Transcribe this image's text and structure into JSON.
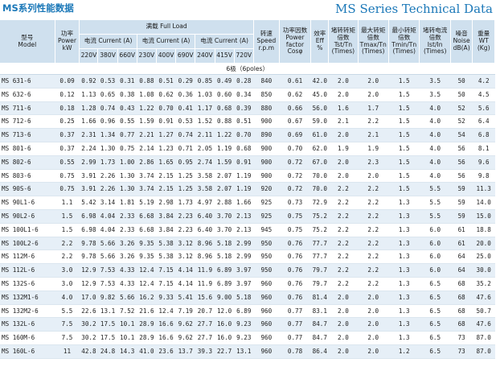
{
  "header": {
    "title_cn": "MS系列性能数据",
    "title_en": "MS Series Technical Data"
  },
  "columns": {
    "model": "型号\nModel",
    "power": "功率\nPower\nkW",
    "full_load": "满载  Full Load",
    "current": "电流 Current (A)",
    "volts": [
      "220V",
      "380V",
      "660V",
      "230V",
      "400V",
      "690V",
      "240V",
      "415V",
      "720V"
    ],
    "speed": "转速\nSpeed\nr.p.m",
    "pf": "功率因数\nPower\nfactor\nCosφ",
    "eff": "效率\nEff\n%",
    "tstall": "堵转转矩\n倍数\nTst/Tn\n(Times)",
    "tmax": "最大转矩\n倍数\nTmax/Tn\n(Times)",
    "tmin": "最小转矩\n倍数\nTmin/Tn\n(Times)",
    "istall": "堵转电流\n倍数\nIst/In\n(Times)",
    "noise": "噪音\nNoise\ndB(A)",
    "weight": "重量\nWT\n(Kg)"
  },
  "pole_label": "6极（6poles）",
  "rows": [
    [
      "MS 631-6",
      "0.09",
      "0.92",
      "0.53",
      "0.31",
      "0.88",
      "0.51",
      "0.29",
      "0.85",
      "0.49",
      "0.28",
      "840",
      "0.61",
      "42.0",
      "2.0",
      "2.0",
      "1.5",
      "3.5",
      "50",
      "4.2"
    ],
    [
      "MS 632-6",
      "0.12",
      "1.13",
      "0.65",
      "0.38",
      "1.08",
      "0.62",
      "0.36",
      "1.03",
      "0.60",
      "0.34",
      "850",
      "0.62",
      "45.0",
      "2.0",
      "2.0",
      "1.5",
      "3.5",
      "50",
      "4.5"
    ],
    [
      "MS 711-6",
      "0.18",
      "1.28",
      "0.74",
      "0.43",
      "1.22",
      "0.70",
      "0.41",
      "1.17",
      "0.68",
      "0.39",
      "880",
      "0.66",
      "56.0",
      "1.6",
      "1.7",
      "1.5",
      "4.0",
      "52",
      "5.6"
    ],
    [
      "MS 712-6",
      "0.25",
      "1.66",
      "0.96",
      "0.55",
      "1.59",
      "0.91",
      "0.53",
      "1.52",
      "0.88",
      "0.51",
      "900",
      "0.67",
      "59.0",
      "2.1",
      "2.2",
      "1.5",
      "4.0",
      "52",
      "6.4"
    ],
    [
      "MS 713-6",
      "0.37",
      "2.31",
      "1.34",
      "0.77",
      "2.21",
      "1.27",
      "0.74",
      "2.11",
      "1.22",
      "0.70",
      "890",
      "0.69",
      "61.0",
      "2.0",
      "2.1",
      "1.5",
      "4.0",
      "54",
      "6.8"
    ],
    [
      "MS 801-6",
      "0.37",
      "2.24",
      "1.30",
      "0.75",
      "2.14",
      "1.23",
      "0.71",
      "2.05",
      "1.19",
      "0.68",
      "900",
      "0.70",
      "62.0",
      "1.9",
      "1.9",
      "1.5",
      "4.0",
      "56",
      "8.1"
    ],
    [
      "MS 802-6",
      "0.55",
      "2.99",
      "1.73",
      "1.00",
      "2.86",
      "1.65",
      "0.95",
      "2.74",
      "1.59",
      "0.91",
      "900",
      "0.72",
      "67.0",
      "2.0",
      "2.3",
      "1.5",
      "4.0",
      "56",
      "9.6"
    ],
    [
      "MS 803-6",
      "0.75",
      "3.91",
      "2.26",
      "1.30",
      "3.74",
      "2.15",
      "1.25",
      "3.58",
      "2.07",
      "1.19",
      "900",
      "0.72",
      "70.0",
      "2.0",
      "2.0",
      "1.5",
      "4.0",
      "56",
      "9.8"
    ],
    [
      "MS 90S-6",
      "0.75",
      "3.91",
      "2.26",
      "1.30",
      "3.74",
      "2.15",
      "1.25",
      "3.58",
      "2.07",
      "1.19",
      "920",
      "0.72",
      "70.0",
      "2.2",
      "2.2",
      "1.5",
      "5.5",
      "59",
      "11.3"
    ],
    [
      "MS 90L1-6",
      "1.1",
      "5.42",
      "3.14",
      "1.81",
      "5.19",
      "2.98",
      "1.73",
      "4.97",
      "2.88",
      "1.66",
      "925",
      "0.73",
      "72.9",
      "2.2",
      "2.2",
      "1.3",
      "5.5",
      "59",
      "14.0"
    ],
    [
      "MS 90L2-6",
      "1.5",
      "6.98",
      "4.04",
      "2.33",
      "6.68",
      "3.84",
      "2.23",
      "6.40",
      "3.70",
      "2.13",
      "925",
      "0.75",
      "75.2",
      "2.2",
      "2.2",
      "1.3",
      "5.5",
      "59",
      "15.0"
    ],
    [
      "MS 100L1-6",
      "1.5",
      "6.98",
      "4.04",
      "2.33",
      "6.68",
      "3.84",
      "2.23",
      "6.40",
      "3.70",
      "2.13",
      "945",
      "0.75",
      "75.2",
      "2.2",
      "2.2",
      "1.3",
      "6.0",
      "61",
      "18.8"
    ],
    [
      "MS 100L2-6",
      "2.2",
      "9.78",
      "5.66",
      "3.26",
      "9.35",
      "5.38",
      "3.12",
      "8.96",
      "5.18",
      "2.99",
      "950",
      "0.76",
      "77.7",
      "2.2",
      "2.2",
      "1.3",
      "6.0",
      "61",
      "20.0"
    ],
    [
      "MS 112M-6",
      "2.2",
      "9.78",
      "5.66",
      "3.26",
      "9.35",
      "5.38",
      "3.12",
      "8.96",
      "5.18",
      "2.99",
      "950",
      "0.76",
      "77.7",
      "2.2",
      "2.2",
      "1.3",
      "6.0",
      "64",
      "25.0"
    ],
    [
      "MS 112L-6",
      "3.0",
      "12.9",
      "7.53",
      "4.33",
      "12.4",
      "7.15",
      "4.14",
      "11.9",
      "6.89",
      "3.97",
      "950",
      "0.76",
      "79.7",
      "2.2",
      "2.2",
      "1.3",
      "6.0",
      "64",
      "30.0"
    ],
    [
      "MS 132S-6",
      "3.0",
      "12.9",
      "7.53",
      "4.33",
      "12.4",
      "7.15",
      "4.14",
      "11.9",
      "6.89",
      "3.97",
      "960",
      "0.76",
      "79.7",
      "2.2",
      "2.2",
      "1.3",
      "6.5",
      "68",
      "35.2"
    ],
    [
      "MS 132M1-6",
      "4.0",
      "17.0",
      "9.82",
      "5.66",
      "16.2",
      "9.33",
      "5.41",
      "15.6",
      "9.00",
      "5.18",
      "960",
      "0.76",
      "81.4",
      "2.0",
      "2.0",
      "1.3",
      "6.5",
      "68",
      "47.6"
    ],
    [
      "MS 132M2-6",
      "5.5",
      "22.6",
      "13.1",
      "7.52",
      "21.6",
      "12.4",
      "7.19",
      "20.7",
      "12.0",
      "6.89",
      "960",
      "0.77",
      "83.1",
      "2.0",
      "2.0",
      "1.3",
      "6.5",
      "68",
      "50.7"
    ],
    [
      "MS 132L-6",
      "7.5",
      "30.2",
      "17.5",
      "10.1",
      "28.9",
      "16.6",
      "9.62",
      "27.7",
      "16.0",
      "9.23",
      "960",
      "0.77",
      "84.7",
      "2.0",
      "2.0",
      "1.3",
      "6.5",
      "68",
      "47.6"
    ],
    [
      "MS 160M-6",
      "7.5",
      "30.2",
      "17.5",
      "10.1",
      "28.9",
      "16.6",
      "9.62",
      "27.7",
      "16.0",
      "9.23",
      "960",
      "0.77",
      "84.7",
      "2.0",
      "2.0",
      "1.3",
      "6.5",
      "73",
      "87.0"
    ],
    [
      "MS 160L-6",
      "11",
      "42.8",
      "24.8",
      "14.3",
      "41.0",
      "23.6",
      "13.7",
      "39.3",
      "22.7",
      "13.1",
      "960",
      "0.78",
      "86.4",
      "2.0",
      "2.0",
      "1.2",
      "6.5",
      "73",
      "87.0"
    ]
  ],
  "colors": {
    "header_bg": "#cfe0ee",
    "row_alt": "#e6eff7",
    "title": "#1b78b8"
  }
}
